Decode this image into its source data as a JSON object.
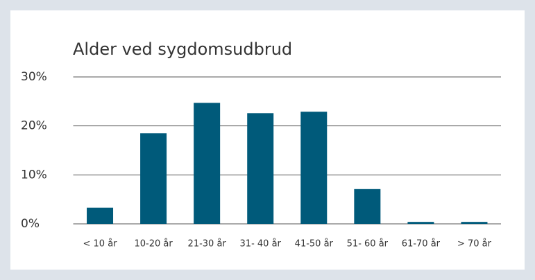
{
  "chart_data": {
    "type": "bar",
    "title": "Alder ved sygdomsudbrud",
    "categories": [
      "< 10 år",
      "10-20 år",
      "21-30 år",
      "31- 40 år",
      "41-50 år",
      "51- 60 år",
      "61-70 år",
      "> 70 år"
    ],
    "values": [
      3.3,
      18.5,
      24.7,
      22.6,
      22.9,
      7.1,
      0.4,
      0.4
    ],
    "color": "#005a7a",
    "ylim": [
      0,
      30
    ],
    "yticks": [
      {
        "value": 0,
        "label": "0%"
      },
      {
        "value": 10,
        "label": "10%"
      },
      {
        "value": 20,
        "label": "20%"
      },
      {
        "value": 30,
        "label": "30%"
      }
    ],
    "grid": true
  }
}
